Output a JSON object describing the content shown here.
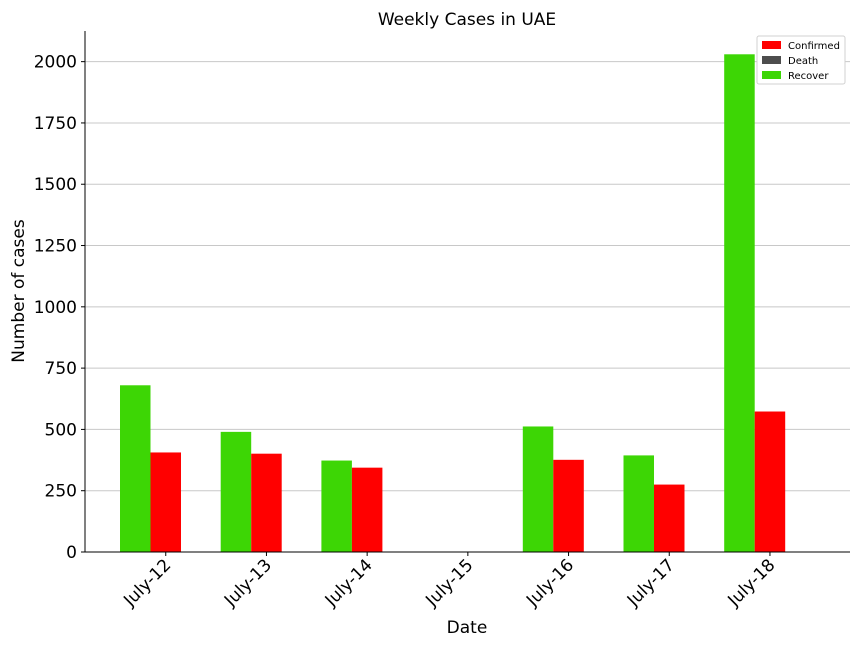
{
  "chart_data": {
    "type": "bar",
    "title": "Weekly Cases in UAE",
    "xlabel": "Date",
    "ylabel": "Number of cases",
    "categories": [
      "July-12",
      "July-13",
      "July-14",
      "July-15",
      "July-16",
      "July-17",
      "July-18"
    ],
    "series": [
      {
        "name": "Recover",
        "color": "#3dd605",
        "values": [
          680,
          490,
          373,
          0,
          512,
          394,
          2030
        ]
      },
      {
        "name": "Confirmed",
        "color": "#ff0000",
        "values": [
          406,
          401,
          344,
          0,
          376,
          275,
          573
        ]
      },
      {
        "name": "Death",
        "color": "#4d4d4d",
        "values": [
          0,
          2,
          0,
          0,
          0,
          0,
          2
        ]
      }
    ],
    "legend_order": [
      "Confirmed",
      "Death",
      "Recover"
    ],
    "legend_position": "top-right",
    "ylim": [
      0,
      2125
    ],
    "yticks": [
      0,
      250,
      500,
      750,
      1000,
      1250,
      1500,
      1750,
      2000
    ],
    "grid": "horizontal"
  }
}
